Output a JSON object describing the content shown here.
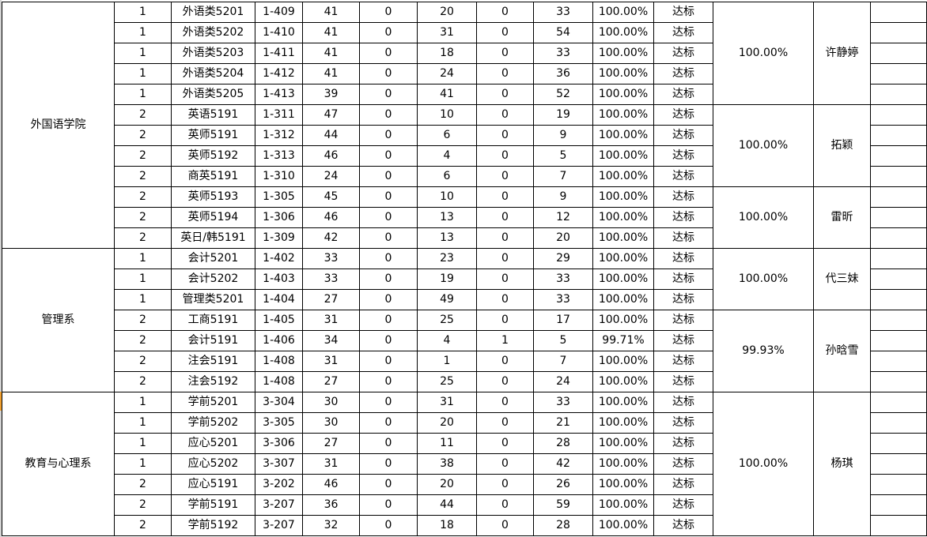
{
  "groups_dept": [
    {
      "name": "外国语学院",
      "rows": 12
    },
    {
      "name": "管理系",
      "rows": 7
    },
    {
      "name": "教育与心理系",
      "rows": 7
    }
  ],
  "groups_rate": [
    {
      "rate": "100.00%",
      "teacher": "许静婷",
      "rows": 5
    },
    {
      "rate": "100.00%",
      "teacher": "拓颖",
      "rows": 4
    },
    {
      "rate": "100.00%",
      "teacher": "雷昕",
      "rows": 3
    },
    {
      "rate": "100.00%",
      "teacher": "代三妹",
      "rows": 3
    },
    {
      "rate": "99.93%",
      "teacher": "孙晗雪",
      "rows": 4
    },
    {
      "rate": "100.00%",
      "teacher": "杨琪",
      "rows": 7
    }
  ],
  "rows": [
    [
      "1",
      "外语类5201",
      "1-409",
      "41",
      "0",
      "20",
      "0",
      "33",
      "100.00%",
      "达标"
    ],
    [
      "1",
      "外语类5202",
      "1-410",
      "41",
      "0",
      "31",
      "0",
      "54",
      "100.00%",
      "达标"
    ],
    [
      "1",
      "外语类5203",
      "1-411",
      "41",
      "0",
      "18",
      "0",
      "33",
      "100.00%",
      "达标"
    ],
    [
      "1",
      "外语类5204",
      "1-412",
      "41",
      "0",
      "24",
      "0",
      "36",
      "100.00%",
      "达标"
    ],
    [
      "1",
      "外语类5205",
      "1-413",
      "39",
      "0",
      "41",
      "0",
      "52",
      "100.00%",
      "达标"
    ],
    [
      "2",
      "英语5191",
      "1-311",
      "47",
      "0",
      "10",
      "0",
      "19",
      "100.00%",
      "达标"
    ],
    [
      "2",
      "英师5191",
      "1-312",
      "44",
      "0",
      "6",
      "0",
      "9",
      "100.00%",
      "达标"
    ],
    [
      "2",
      "英师5192",
      "1-313",
      "46",
      "0",
      "4",
      "0",
      "5",
      "100.00%",
      "达标"
    ],
    [
      "2",
      "商英5191",
      "1-310",
      "24",
      "0",
      "6",
      "0",
      "7",
      "100.00%",
      "达标"
    ],
    [
      "2",
      "英师5193",
      "1-305",
      "45",
      "0",
      "10",
      "0",
      "9",
      "100.00%",
      "达标"
    ],
    [
      "2",
      "英师5194",
      "1-306",
      "46",
      "0",
      "13",
      "0",
      "12",
      "100.00%",
      "达标"
    ],
    [
      "2",
      "英日/韩5191",
      "1-309",
      "42",
      "0",
      "13",
      "0",
      "20",
      "100.00%",
      "达标"
    ],
    [
      "1",
      "会计5201",
      "1-402",
      "33",
      "0",
      "23",
      "0",
      "29",
      "100.00%",
      "达标"
    ],
    [
      "1",
      "会计5202",
      "1-403",
      "33",
      "0",
      "19",
      "0",
      "33",
      "100.00%",
      "达标"
    ],
    [
      "1",
      "管理类5201",
      "1-404",
      "27",
      "0",
      "49",
      "0",
      "33",
      "100.00%",
      "达标"
    ],
    [
      "2",
      "工商5191",
      "1-405",
      "31",
      "0",
      "25",
      "0",
      "17",
      "100.00%",
      "达标"
    ],
    [
      "2",
      "会计5191",
      "1-406",
      "34",
      "0",
      "4",
      "1",
      "5",
      "99.71%",
      "达标"
    ],
    [
      "2",
      "注会5191",
      "1-408",
      "31",
      "0",
      "1",
      "0",
      "7",
      "100.00%",
      "达标"
    ],
    [
      "2",
      "注会5192",
      "1-408",
      "27",
      "0",
      "25",
      "0",
      "24",
      "100.00%",
      "达标"
    ],
    [
      "1",
      "学前5201",
      "3-304",
      "30",
      "0",
      "31",
      "0",
      "33",
      "100.00%",
      "达标"
    ],
    [
      "1",
      "学前5202",
      "3-305",
      "30",
      "0",
      "20",
      "0",
      "21",
      "100.00%",
      "达标"
    ],
    [
      "1",
      "应心5201",
      "3-306",
      "27",
      "0",
      "11",
      "0",
      "28",
      "100.00%",
      "达标"
    ],
    [
      "1",
      "应心5202",
      "3-307",
      "31",
      "0",
      "38",
      "0",
      "42",
      "100.00%",
      "达标"
    ],
    [
      "2",
      "应心5191",
      "3-202",
      "46",
      "0",
      "20",
      "0",
      "26",
      "100.00%",
      "达标"
    ],
    [
      "2",
      "学前5191",
      "3-207",
      "36",
      "0",
      "44",
      "0",
      "59",
      "100.00%",
      "达标"
    ],
    [
      "2",
      "学前5192",
      "3-207",
      "32",
      "0",
      "18",
      "0",
      "28",
      "100.00%",
      "达标"
    ]
  ]
}
